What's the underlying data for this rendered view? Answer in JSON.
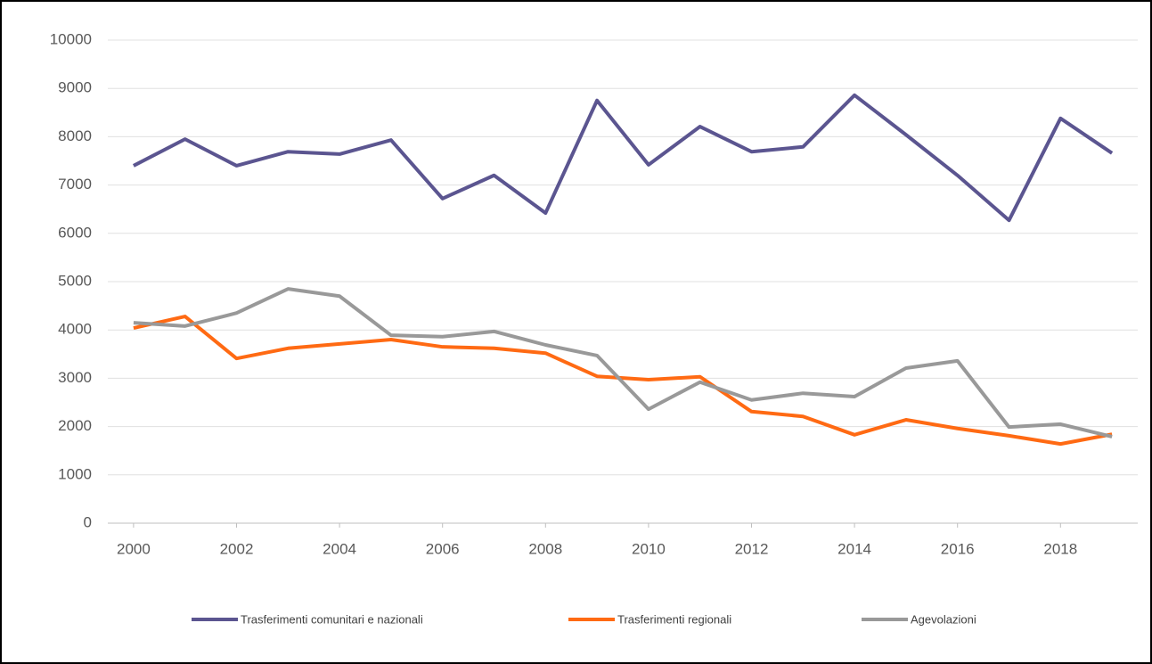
{
  "chart_data": {
    "type": "line",
    "x": [
      2000,
      2001,
      2002,
      2003,
      2004,
      2005,
      2006,
      2007,
      2008,
      2009,
      2010,
      2011,
      2012,
      2013,
      2014,
      2015,
      2016,
      2017,
      2018,
      2019
    ],
    "series": [
      {
        "name": "Trasferimenti comunitari e nazionali",
        "color": "#5b5590",
        "values": [
          7400,
          7950,
          7400,
          7690,
          7640,
          7930,
          6720,
          7200,
          6420,
          8750,
          7420,
          8210,
          7690,
          7790,
          8860,
          8040,
          7200,
          6270,
          8380,
          7660
        ]
      },
      {
        "name": "Trasferimenti regionali",
        "color": "#ff6a13",
        "values": [
          4040,
          4280,
          3410,
          3620,
          3710,
          3800,
          3650,
          3620,
          3520,
          3040,
          2970,
          3030,
          2310,
          2210,
          1830,
          2140,
          1960,
          1810,
          1640,
          1840
        ]
      },
      {
        "name": "Agevolazioni",
        "color": "#999999",
        "values": [
          4150,
          4080,
          4350,
          4850,
          4700,
          3890,
          3860,
          3970,
          3690,
          3470,
          2360,
          2920,
          2550,
          2690,
          2620,
          3210,
          3360,
          1990,
          2050,
          1790
        ]
      }
    ],
    "xlim": [
      1999.5,
      2019.5
    ],
    "xticks": [
      2000,
      2002,
      2004,
      2006,
      2008,
      2010,
      2012,
      2014,
      2016,
      2018
    ],
    "ylim": [
      0,
      10000
    ],
    "yticks": [
      0,
      1000,
      2000,
      3000,
      4000,
      5000,
      6000,
      7000,
      8000,
      9000,
      10000
    ],
    "grid": true,
    "legend": "bottom"
  }
}
